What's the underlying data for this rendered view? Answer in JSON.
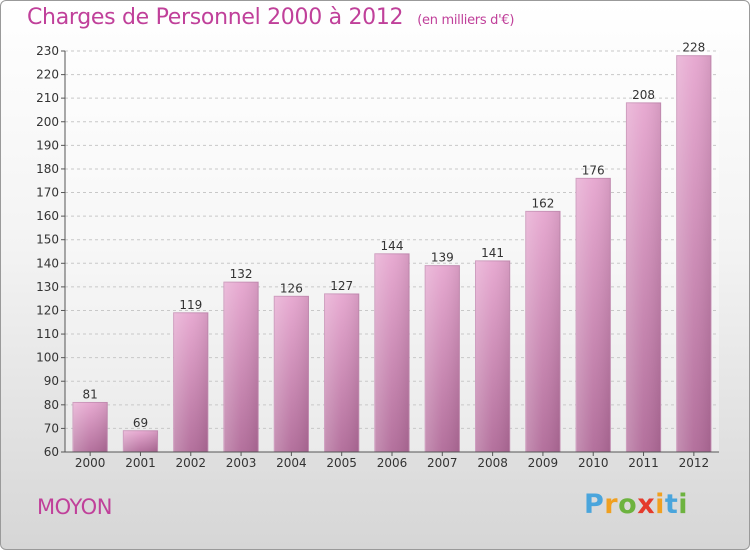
{
  "chart_data": {
    "type": "bar",
    "title": "Charges de Personnel 2000 à 2012",
    "subtitle": "(en milliers d'€)",
    "categories": [
      "2000",
      "2001",
      "2002",
      "2003",
      "2004",
      "2005",
      "2006",
      "2007",
      "2008",
      "2009",
      "2010",
      "2011",
      "2012"
    ],
    "values": [
      81,
      69,
      119,
      132,
      126,
      127,
      144,
      139,
      141,
      162,
      176,
      208,
      228
    ],
    "ylim": [
      60,
      230
    ],
    "yticks": [
      60,
      70,
      80,
      90,
      100,
      110,
      120,
      130,
      140,
      150,
      160,
      170,
      180,
      190,
      200,
      210,
      220,
      230
    ],
    "grid": true,
    "bar_color": "#d98fbf",
    "xlabel": "",
    "ylabel": ""
  },
  "commune": "MOYON",
  "logo": {
    "text": "Proxiti",
    "letters": [
      {
        "ch": "P",
        "color": "#4aa5dc"
      },
      {
        "ch": "r",
        "color": "#f0a020"
      },
      {
        "ch": "o",
        "color": "#6db33f"
      },
      {
        "ch": "x",
        "color": "#e53b2c"
      },
      {
        "ch": "i",
        "color": "#f0a020"
      },
      {
        "ch": "t",
        "color": "#4aa5dc"
      },
      {
        "ch": "i",
        "color": "#6db33f"
      }
    ]
  },
  "colors": {
    "accent": "#c0409a"
  }
}
